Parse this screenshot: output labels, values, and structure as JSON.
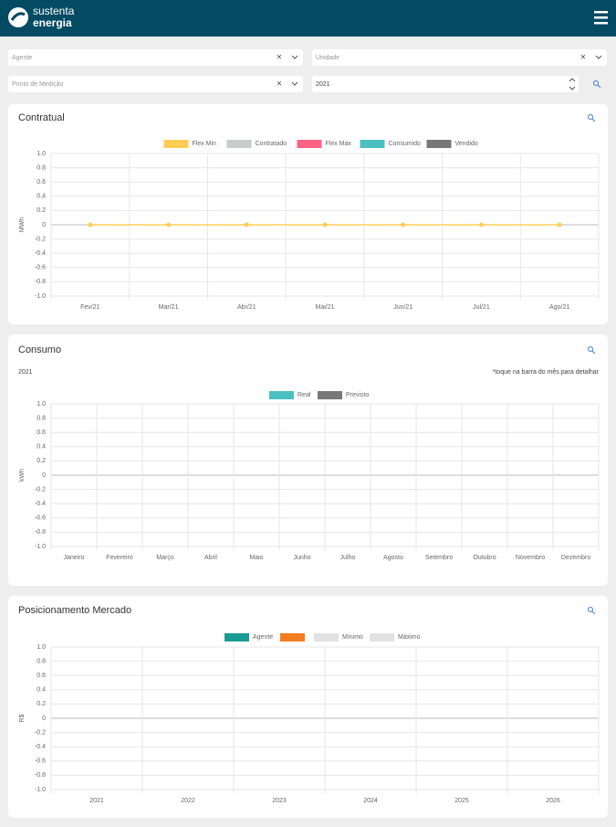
{
  "header": {
    "brand": [
      "sustenta",
      "energia"
    ]
  },
  "filters": {
    "agente": "Agente",
    "unidade": "Unidade",
    "ponto": "Ponto de Medição",
    "ano": "2021"
  },
  "panels": [
    {
      "title": "Contratual",
      "chart": {
        "type": "line",
        "ylabel": "MWh",
        "categories": [
          "Fev/21",
          "Mar/21",
          "Abr/21",
          "Mai/21",
          "Jun/21",
          "Jul/21",
          "Ago/21"
        ],
        "series": [
          {
            "name": "Flex Min",
            "color": "#ffcd56",
            "values": [
              0,
              0,
              0,
              0,
              0,
              0,
              0
            ]
          },
          {
            "name": "Contratado",
            "color": "#c9cbcf",
            "values": [
              null,
              null,
              null,
              null,
              null,
              null,
              null
            ]
          },
          {
            "name": "Flex Max",
            "color": "#ff6384",
            "values": [
              null,
              null,
              null,
              null,
              null,
              null,
              null
            ]
          },
          {
            "name": "Consumido",
            "color": "#4bc0c0",
            "values": [
              null,
              null,
              null,
              null,
              null,
              null,
              null
            ]
          },
          {
            "name": "Vendido",
            "color": "#777777",
            "values": [
              null,
              null,
              null,
              null,
              null,
              null,
              null
            ]
          }
        ],
        "ylim": [
          -1,
          1
        ],
        "yticks": [
          {
            "value": 1,
            "label": "1.0"
          },
          0.8,
          0.6,
          0.4,
          0.2,
          0,
          -0.2,
          -0.4,
          -0.6,
          -0.8,
          {
            "value": -1,
            "label": "-1.0"
          }
        ],
        "grid": true
      }
    },
    {
      "title": "Consumo",
      "subtitle": "2021",
      "note": "*toque na barra do mês para detalhar",
      "chart": {
        "type": "bar",
        "ylabel": "kWh",
        "categories": [
          "Janeiro",
          "Fevereiro",
          "Março",
          "Abril",
          "Maio",
          "Junho",
          "Julho",
          "Agosto",
          "Setembro",
          "Outubro",
          "Novembro",
          "Dezembro"
        ],
        "series": [
          {
            "name": "Real",
            "color": "#4bc0c0",
            "values": [
              null,
              null,
              null,
              null,
              null,
              null,
              null,
              null,
              null,
              null,
              null,
              null
            ]
          },
          {
            "name": "Previsto",
            "color": "#777777",
            "values": [
              null,
              null,
              null,
              null,
              null,
              null,
              null,
              null,
              null,
              null,
              null,
              null
            ]
          }
        ],
        "ylim": [
          -1,
          1
        ],
        "yticks": [
          {
            "value": 1,
            "label": "1.0"
          },
          0.8,
          0.6,
          0.4,
          0.2,
          0,
          -0.2,
          -0.4,
          -0.6,
          -0.8,
          {
            "value": -1,
            "label": "-1.0"
          }
        ],
        "grid": true
      }
    },
    {
      "title": "Posicionamento Mercado",
      "chart": {
        "type": "bar",
        "ylabel": "R$",
        "categories": [
          "2021",
          "2022",
          "2023",
          "2024",
          "2025",
          "2026"
        ],
        "series": [
          {
            "name": "Agente",
            "color": "#1a9a94",
            "values": [
              null,
              null,
              null,
              null,
              null,
              null
            ]
          },
          {
            "color": "#f47c20",
            "values": [
              null,
              null,
              null,
              null,
              null,
              null
            ]
          },
          {
            "name": "Mínimo",
            "color": "#e2e2e2",
            "values": [
              null,
              null,
              null,
              null,
              null,
              null
            ]
          },
          {
            "name": "Máximo",
            "color": "#e2e2e2",
            "values": [
              null,
              null,
              null,
              null,
              null,
              null
            ]
          }
        ],
        "ylim": [
          -1,
          1
        ],
        "yticks": [
          {
            "value": 1,
            "label": "1.0"
          },
          0.8,
          0.6,
          0.4,
          0.2,
          0,
          -0.2,
          -0.4,
          -0.6,
          -0.8,
          {
            "value": -1,
            "label": "-1.0"
          }
        ],
        "grid": true
      }
    }
  ]
}
